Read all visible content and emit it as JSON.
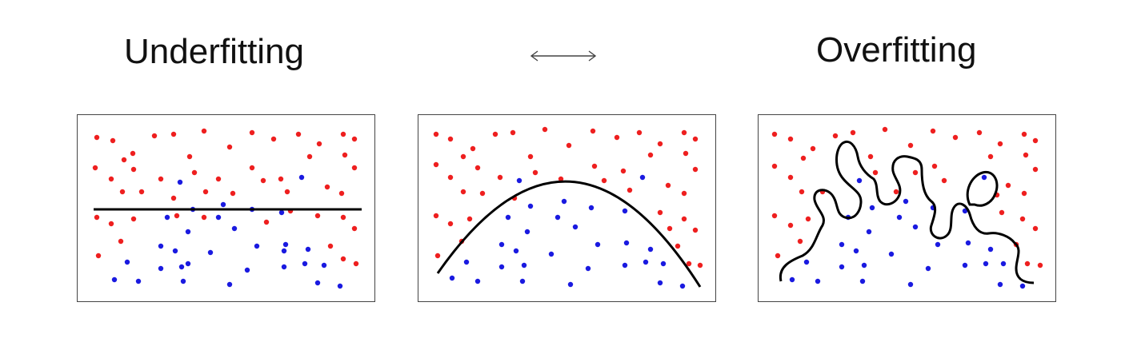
{
  "titles": {
    "left": "Underfitting",
    "right": "Overfitting"
  },
  "colors": {
    "red": "#ee1f1f",
    "blue": "#1a1ae0",
    "curve": "#000000"
  },
  "icons": {
    "middle": "double-arrow-icon"
  },
  "panels": [
    {
      "id": "underfit",
      "boundary": "linear"
    },
    {
      "id": "balanced",
      "boundary": "quadratic"
    },
    {
      "id": "overfit",
      "boundary": "wiggly"
    }
  ]
}
